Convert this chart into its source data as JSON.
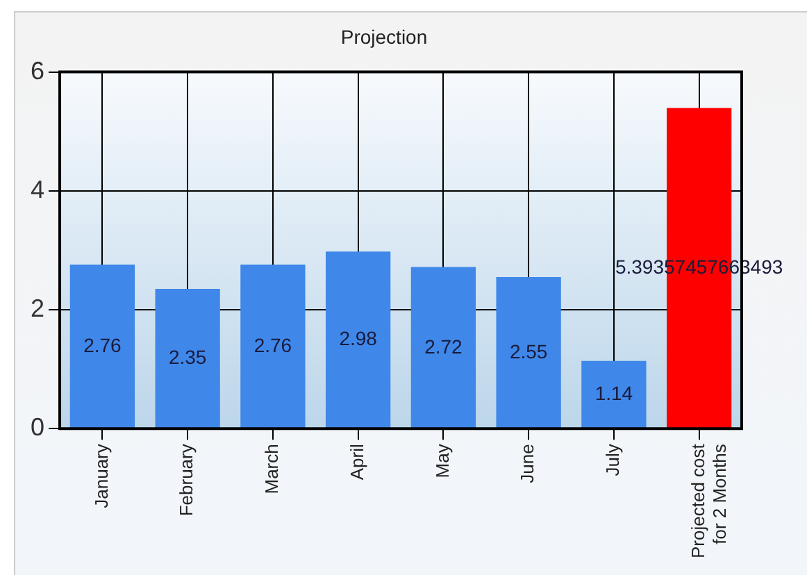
{
  "chart_data": {
    "type": "bar",
    "title": "Projection",
    "categories": [
      "January",
      "February",
      "March",
      "April",
      "May",
      "June",
      "July",
      "Projected cost for 2 Months"
    ],
    "values": [
      2.76,
      2.35,
      2.76,
      2.98,
      2.72,
      2.55,
      1.14,
      5.39357457663493
    ],
    "colors": [
      "#3f87e9",
      "#3f87e9",
      "#3f87e9",
      "#3f87e9",
      "#3f87e9",
      "#3f87e9",
      "#3f87e9",
      "#ff0000"
    ],
    "ylim": [
      0,
      6
    ],
    "yticks": [
      0,
      2,
      4,
      6
    ],
    "grid": true,
    "data_labels": true
  }
}
